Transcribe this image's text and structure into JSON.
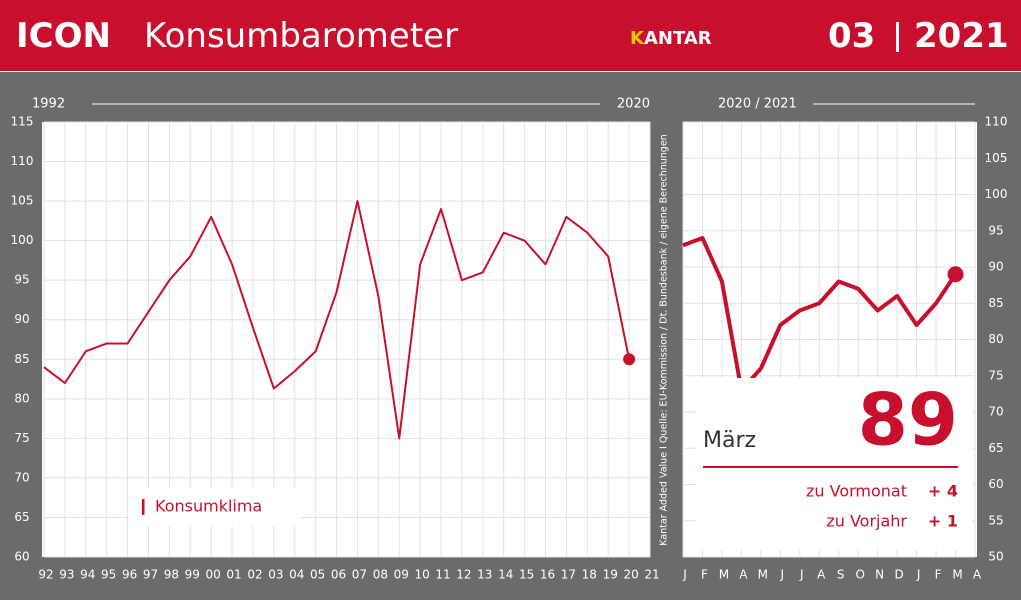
{
  "header": {
    "title_bold": "ICON",
    "title": "Konsumbarometer",
    "brand": "KANTAR",
    "month": "03",
    "year": "2021"
  },
  "source": "Kantar Added Value I Quelle: EU-Kommission / Dt. Bundesbank / eigene Berechnungen",
  "chart_data": [
    {
      "type": "line",
      "range_labels": [
        "1992",
        "2020"
      ],
      "categories": [
        "92",
        "93",
        "94",
        "95",
        "96",
        "97",
        "98",
        "99",
        "00",
        "01",
        "02",
        "03",
        "04",
        "05",
        "06",
        "07",
        "08",
        "09",
        "10",
        "11",
        "12",
        "13",
        "14",
        "15",
        "16",
        "17",
        "18",
        "19",
        "20",
        "21"
      ],
      "series": [
        {
          "name": "Konsumklima",
          "color": "#c8102e",
          "values": [
            84,
            82,
            86,
            87,
            87,
            91,
            95,
            98,
            103,
            97,
            89,
            81.3,
            83.5,
            86,
            93.5,
            105,
            93,
            75,
            97,
            104,
            95,
            96,
            101,
            100,
            97,
            103,
            101,
            98,
            85,
            null
          ]
        }
      ],
      "ylim": [
        60,
        115
      ],
      "yticks": [
        60,
        65,
        70,
        75,
        80,
        85,
        90,
        95,
        100,
        105,
        110,
        115
      ],
      "grid": true,
      "marker_last": true
    },
    {
      "type": "line",
      "range_labels": [
        "2020 / 2021"
      ],
      "categories": [
        "J",
        "F",
        "M",
        "A",
        "M",
        "J",
        "J",
        "A",
        "S",
        "O",
        "N",
        "D",
        "J",
        "F",
        "M",
        "A"
      ],
      "series": [
        {
          "color": "#c8102e",
          "values": [
            93,
            94,
            88,
            73,
            76,
            82,
            84,
            85,
            88,
            87,
            84,
            86,
            82,
            85,
            89,
            null
          ]
        }
      ],
      "ylim": [
        50,
        110
      ],
      "yticks": [
        50,
        55,
        60,
        65,
        70,
        75,
        80,
        85,
        90,
        95,
        100,
        105,
        110
      ],
      "grid": true,
      "marker_last": true,
      "callout": {
        "label": "März",
        "value": 89,
        "changes": [
          {
            "label": "zu Vormonat",
            "value": 4,
            "value_label": "+ 4"
          },
          {
            "label": "zu Vorjahr",
            "value": 1,
            "value_label": "+ 1"
          }
        ]
      }
    }
  ]
}
